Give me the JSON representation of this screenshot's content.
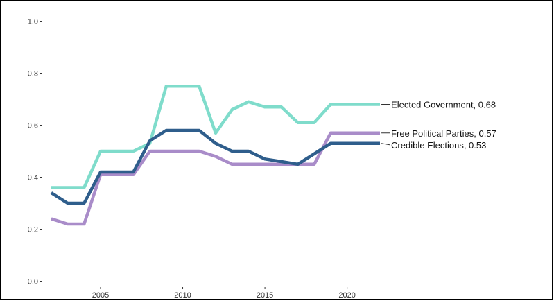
{
  "chart_data": {
    "type": "line",
    "title": "",
    "xlabel": "",
    "ylabel": "",
    "xlim": [
      2001.5,
      2032.5
    ],
    "ylim": [
      -0.02,
      1.06
    ],
    "x_ticks": [
      2005,
      2010,
      2015,
      2020
    ],
    "y_ticks": [
      0.0,
      0.2,
      0.4,
      0.6,
      0.8,
      1.0
    ],
    "y_tick_labels": [
      "0.0",
      "0.2",
      "0.4",
      "0.6",
      "0.8",
      "1.0"
    ],
    "x_tick_labels": [
      "2005",
      "2010",
      "2015",
      "2020"
    ],
    "grid": false,
    "x": [
      2002,
      2003,
      2004,
      2005,
      2006,
      2007,
      2008,
      2009,
      2010,
      2011,
      2012,
      2013,
      2014,
      2015,
      2016,
      2017,
      2018,
      2019,
      2020,
      2021,
      2022
    ],
    "series": [
      {
        "key": "elected",
        "name": "Elected Government",
        "end_label": "Elected Government, 0.68",
        "color": "#7fdccb",
        "values": [
          0.36,
          0.36,
          0.36,
          0.5,
          0.5,
          0.5,
          0.53,
          0.75,
          0.75,
          0.75,
          0.57,
          0.66,
          0.69,
          0.67,
          0.67,
          0.61,
          0.61,
          0.68,
          0.68,
          0.68,
          0.68
        ]
      },
      {
        "key": "parties",
        "name": "Free Political Parties",
        "end_label": "Free Political Parties, 0.57",
        "color": "#a98cc9",
        "values": [
          0.24,
          0.22,
          0.22,
          0.41,
          0.41,
          0.41,
          0.5,
          0.5,
          0.5,
          0.5,
          0.48,
          0.45,
          0.45,
          0.45,
          0.45,
          0.45,
          0.45,
          0.57,
          0.57,
          0.57,
          0.57
        ]
      },
      {
        "key": "elections",
        "name": "Credible Elections",
        "end_label": "Credible Elections, 0.53",
        "color": "#2f5e8c",
        "values": [
          0.34,
          0.3,
          0.3,
          0.42,
          0.42,
          0.42,
          0.54,
          0.58,
          0.58,
          0.58,
          0.53,
          0.5,
          0.5,
          0.47,
          0.46,
          0.45,
          0.49,
          0.53,
          0.53,
          0.53,
          0.53
        ]
      }
    ]
  }
}
